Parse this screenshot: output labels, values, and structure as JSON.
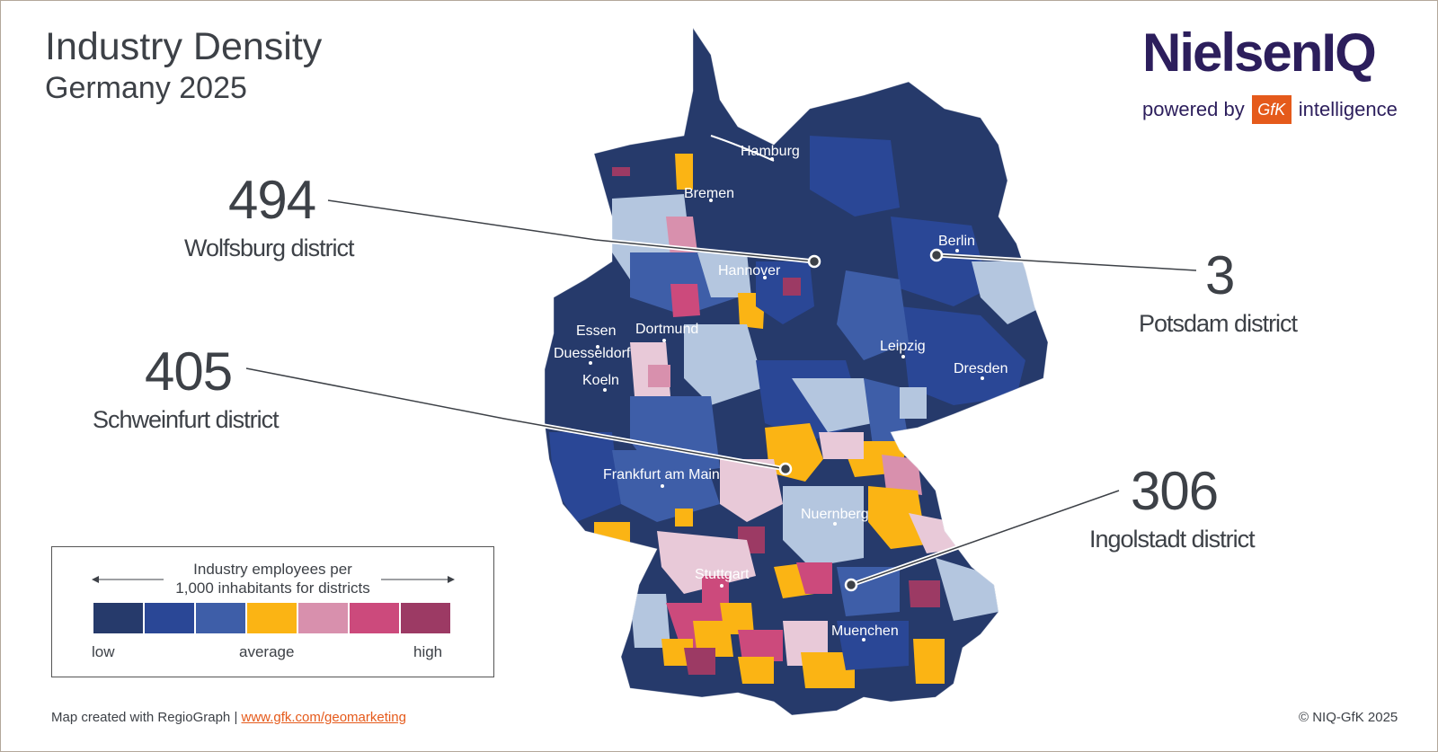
{
  "header": {
    "title": "Industry Density",
    "subtitle": "Germany 2025"
  },
  "logo": {
    "brand": "NielsenIQ",
    "powered_by": "powered by",
    "gfk": "GfK",
    "suffix": "intelligence"
  },
  "colors": {
    "scale": [
      "#263a6b",
      "#2a4796",
      "#3e5ea8",
      "#fbb414",
      "#d890ad",
      "#cc4a7c",
      "#9c3a64"
    ],
    "light_blue": "#b4c6df",
    "pale_pink": "#e8c9d8",
    "accent_orange": "#e55a1b",
    "brand": "#2c1e5c"
  },
  "cities": [
    {
      "name": "Hamburg"
    },
    {
      "name": "Bremen"
    },
    {
      "name": "Hannover"
    },
    {
      "name": "Berlin"
    },
    {
      "name": "Essen"
    },
    {
      "name": "Dortmund"
    },
    {
      "name": "Duesseldorf"
    },
    {
      "name": "Koeln"
    },
    {
      "name": "Leipzig"
    },
    {
      "name": "Dresden"
    },
    {
      "name": "Frankfurt am Main"
    },
    {
      "name": "Nuernberg"
    },
    {
      "name": "Stuttgart"
    },
    {
      "name": "Muenchen"
    }
  ],
  "callouts": [
    {
      "value": "494",
      "label": "Wolfsburg district"
    },
    {
      "value": "405",
      "label": "Schweinfurt district"
    },
    {
      "value": "3",
      "label": "Potsdam district"
    },
    {
      "value": "306",
      "label": "Ingolstadt district"
    }
  ],
  "legend": {
    "title_line1": "Industry employees per",
    "title_line2": "1,000 inhabitants for districts",
    "low": "low",
    "average": "average",
    "high": "high"
  },
  "footer": {
    "credit": "Map created with RegioGraph |",
    "link": "www.gfk.com/geomarketing",
    "copyright": "© NIQ-GfK 2025"
  }
}
